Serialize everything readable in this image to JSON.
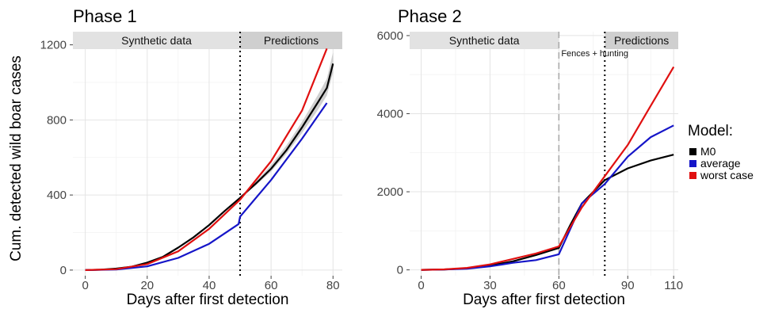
{
  "y_axis_label": "Cum. detected wild boar cases",
  "legend": {
    "title": "Model:",
    "items": [
      {
        "label": "M0",
        "color": "#000000"
      },
      {
        "label": "average",
        "color": "#1515c8"
      },
      {
        "label": "worst case",
        "color": "#e01010"
      }
    ]
  },
  "chart_data": [
    {
      "type": "line",
      "title": "Phase 1",
      "xlabel": "Days after first detection",
      "ylabel": "Cum. detected wild boar cases",
      "xlim": [
        -4,
        83
      ],
      "ylim": [
        -30,
        1270
      ],
      "x_ticks": [
        0,
        20,
        40,
        60,
        80
      ],
      "y_ticks": [
        0,
        400,
        800,
        1200
      ],
      "grid": true,
      "bands": [
        {
          "label": "Synthetic data",
          "x_start": -4,
          "x_end": 50
        },
        {
          "label": "Predictions",
          "x_start": 50,
          "x_end": 83
        }
      ],
      "vlines": [
        {
          "x": 50,
          "style": "dotted",
          "color": "#000000"
        }
      ],
      "series": [
        {
          "name": "M0",
          "color": "#000000",
          "band_color": "#b0b0b0",
          "x": [
            0,
            5,
            10,
            15,
            20,
            25,
            30,
            35,
            40,
            45,
            50,
            55,
            60,
            65,
            70,
            75,
            78,
            80
          ],
          "y": [
            0,
            2,
            8,
            18,
            40,
            70,
            120,
            175,
            240,
            315,
            385,
            460,
            540,
            640,
            760,
            890,
            970,
            1100
          ],
          "lower": [
            0,
            2,
            8,
            18,
            40,
            70,
            120,
            175,
            240,
            315,
            385,
            450,
            525,
            620,
            730,
            850,
            930,
            1050
          ],
          "upper": [
            0,
            2,
            8,
            18,
            40,
            70,
            120,
            175,
            240,
            315,
            385,
            470,
            560,
            665,
            790,
            930,
            1020,
            1160
          ]
        },
        {
          "name": "average",
          "color": "#1515c8",
          "x": [
            0,
            10,
            20,
            30,
            40,
            49.5,
            50,
            60,
            70,
            78
          ],
          "y": [
            0,
            3,
            20,
            65,
            140,
            245,
            285,
            480,
            700,
            890
          ]
        },
        {
          "name": "worst case",
          "color": "#e01010",
          "x": [
            0,
            10,
            20,
            30,
            40,
            50,
            60,
            70,
            78
          ],
          "y": [
            0,
            5,
            32,
            100,
            220,
            375,
            580,
            850,
            1180
          ]
        }
      ]
    },
    {
      "type": "line",
      "title": "Phase 2",
      "xlabel": "Days after first detection",
      "ylabel": "",
      "xlim": [
        -5,
        112
      ],
      "ylim": [
        -150,
        6100
      ],
      "x_ticks": [
        0,
        30,
        60,
        90,
        110
      ],
      "y_ticks": [
        0,
        2000,
        4000,
        6000
      ],
      "grid": true,
      "bands": [
        {
          "label": "Synthetic data",
          "x_start": -5,
          "x_end": 60
        },
        {
          "label": "Predictions",
          "x_start": 80,
          "x_end": 112
        }
      ],
      "vlines": [
        {
          "x": 60,
          "style": "dashed",
          "color": "#aaaaaa"
        },
        {
          "x": 80,
          "style": "dotted",
          "color": "#000000"
        }
      ],
      "annotations": [
        {
          "text": "Fences + hunting",
          "x": 60,
          "y": 5650
        }
      ],
      "series": [
        {
          "name": "M0",
          "color": "#000000",
          "x": [
            0,
            10,
            20,
            30,
            40,
            50,
            60,
            65,
            70,
            80,
            90,
            100,
            110
          ],
          "y": [
            0,
            10,
            40,
            110,
            220,
            380,
            560,
            1150,
            1700,
            2300,
            2600,
            2800,
            2950
          ]
        },
        {
          "name": "average",
          "color": "#1515c8",
          "x": [
            0,
            10,
            20,
            30,
            40,
            50,
            60,
            70,
            80,
            90,
            100,
            110
          ],
          "y": [
            0,
            8,
            30,
            90,
            180,
            250,
            400,
            1700,
            2200,
            2900,
            3400,
            3700
          ]
        },
        {
          "name": "worst case",
          "color": "#e01010",
          "x": [
            0,
            10,
            20,
            30,
            40,
            50,
            60,
            70,
            80,
            90,
            100,
            110
          ],
          "y": [
            0,
            12,
            50,
            140,
            280,
            420,
            600,
            1600,
            2400,
            3200,
            4200,
            5200
          ]
        }
      ]
    }
  ]
}
